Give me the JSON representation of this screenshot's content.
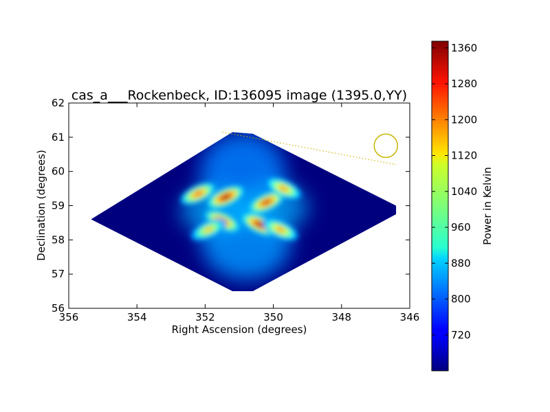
{
  "chart_data": {
    "type": "heatmap",
    "title": "cas_a___Rockenbeck, ID:136095 image (1395.0,YY)",
    "xlabel": "Right Ascension (degrees)",
    "ylabel": "Declination (degrees)",
    "xlim": [
      356,
      346
    ],
    "ylim": [
      56,
      62
    ],
    "xticks": [
      "356",
      "354",
      "352",
      "350",
      "348",
      "346"
    ],
    "yticks": [
      "56",
      "57",
      "58",
      "59",
      "60",
      "61",
      "62"
    ],
    "colorbar": {
      "label": "Power in Kelvin",
      "range": [
        640,
        1375
      ],
      "ticks": [
        "720",
        "800",
        "880",
        "960",
        "1040",
        "1120",
        "1200",
        "1280",
        "1360"
      ],
      "colormap": "jet"
    },
    "footprint_polygon": [
      [
        355.35,
        58.6
      ],
      [
        351.2,
        61.15
      ],
      [
        350.6,
        61.1
      ],
      [
        346.4,
        59.0
      ],
      [
        346.4,
        58.75
      ],
      [
        350.6,
        56.5
      ],
      [
        351.2,
        56.5
      ]
    ],
    "hotspots": [
      {
        "ra": 351.4,
        "dec": 59.25,
        "value": 1380
      },
      {
        "ra": 350.4,
        "dec": 58.45,
        "value": 1370
      },
      {
        "ra": 350.2,
        "dec": 59.1,
        "value": 1320
      },
      {
        "ra": 351.5,
        "dec": 58.55,
        "value": 1300
      },
      {
        "ra": 352.2,
        "dec": 59.35,
        "value": 1250
      },
      {
        "ra": 349.7,
        "dec": 59.5,
        "value": 1200
      },
      {
        "ra": 351.9,
        "dec": 58.3,
        "value": 1150
      },
      {
        "ra": 349.8,
        "dec": 58.3,
        "value": 1200
      }
    ],
    "beam": {
      "ra": 346.7,
      "dec": 60.75
    },
    "annotation_line": [
      [
        351.5,
        61.15
      ],
      [
        346.4,
        60.2
      ]
    ],
    "colors": {
      "annotation": "#c8b400",
      "background_level": "#00007f"
    }
  }
}
